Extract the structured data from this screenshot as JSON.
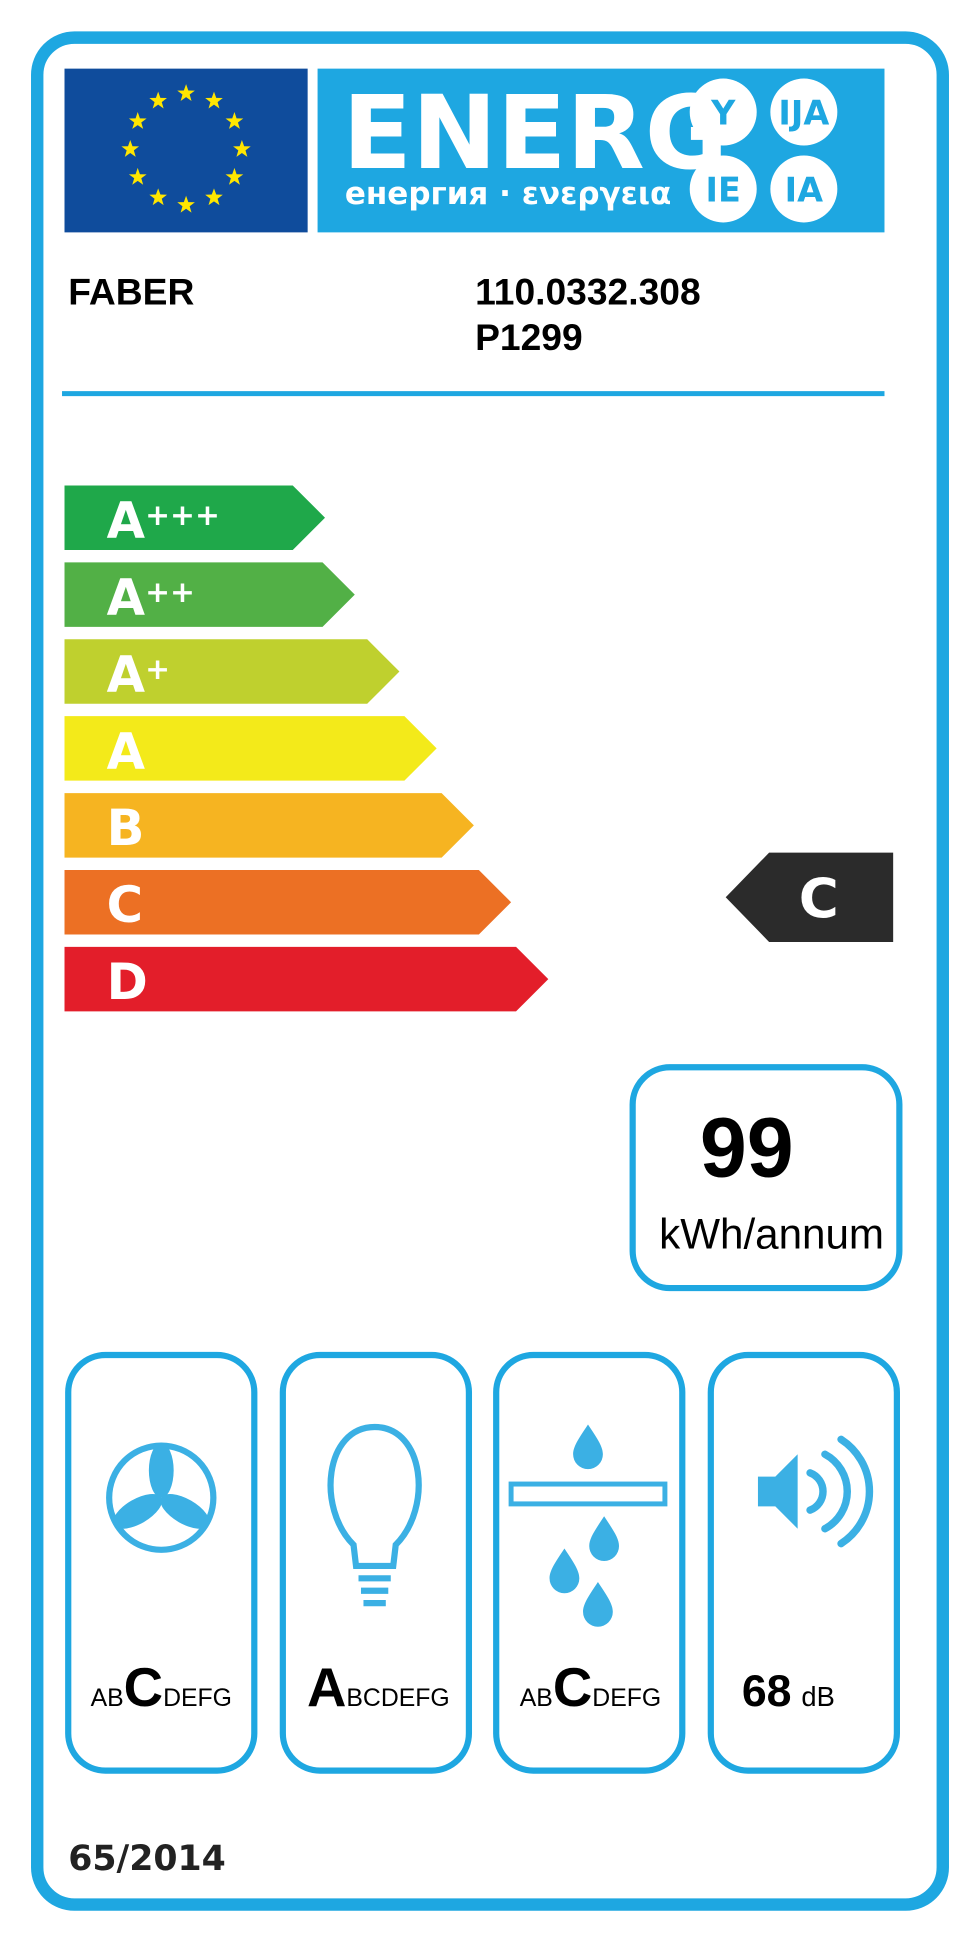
{
  "header": {
    "word": "ENERG",
    "circles": [
      "Y",
      "IJA",
      "IE",
      "IA"
    ],
    "subtitle": "енергия · ενεργεια"
  },
  "supplier": "FABER",
  "model": [
    "110.0332.308",
    "P1299"
  ],
  "classes": [
    {
      "letter": "A",
      "plus": "+++",
      "color": "#1fa84a"
    },
    {
      "letter": "A",
      "plus": "++",
      "color": "#52b046"
    },
    {
      "letter": "A",
      "plus": "+",
      "color": "#bfd02e"
    },
    {
      "letter": "A",
      "plus": null,
      "color": "#f3ea1a"
    },
    {
      "letter": "B",
      "plus": null,
      "color": "#f6b421"
    },
    {
      "letter": "C",
      "plus": null,
      "color": "#ec7024"
    },
    {
      "letter": "D",
      "plus": null,
      "color": "#e31e2a"
    }
  ],
  "rating": "C",
  "energy": {
    "value": 99,
    "unit": "kWh/annum"
  },
  "icons": {
    "fan": [
      "AB",
      "C",
      "DEFG"
    ],
    "light": [
      "A",
      "BCDEFG"
    ],
    "grease": [
      "AB",
      "C",
      "DEFG"
    ],
    "noise": {
      "value": 68,
      "unit": "dB"
    }
  },
  "regulation": "65/2014"
}
